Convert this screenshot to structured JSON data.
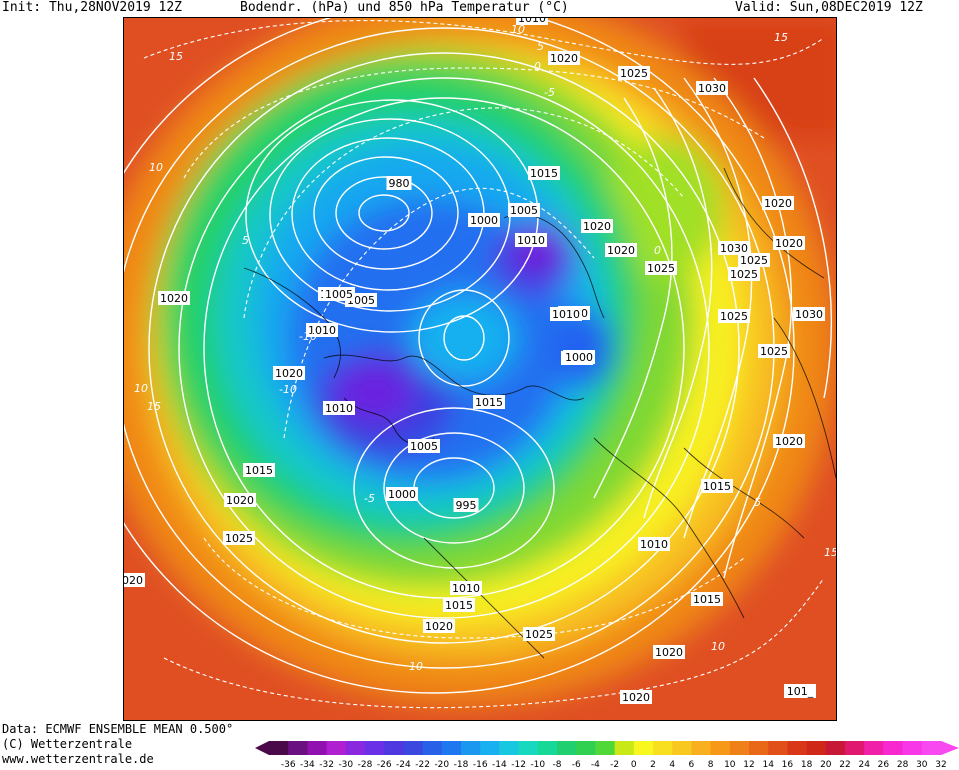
{
  "header": {
    "init": "Init: Thu,28NOV2019 12Z",
    "title": "Bodendr. (hPa) und 850 hPa Temperatur (°C)",
    "valid": "Valid: Sun,08DEC2019 12Z"
  },
  "footer": {
    "data_source": "Data: ECMWF ENSEMBLE MEAN 0.500°",
    "copyright": "(C) Wetterzentrale",
    "website": "www.wetterzentrale.de"
  },
  "legend": {
    "ticks": [
      "-36",
      "-34",
      "-32",
      "-30",
      "-28",
      "-26",
      "-24",
      "-22",
      "-20",
      "-18",
      "-16",
      "-14",
      "-12",
      "-10",
      "-8",
      "-6",
      "-4",
      "-2",
      "0",
      "2",
      "4",
      "6",
      "8",
      "10",
      "12",
      "14",
      "16",
      "18",
      "20",
      "22",
      "24",
      "26",
      "28",
      "30",
      "32"
    ],
    "colors": [
      "#4a0a4a",
      "#6a1080",
      "#9010b0",
      "#b020d0",
      "#8a28e0",
      "#6a30e8",
      "#5038e0",
      "#3a48e0",
      "#2860e8",
      "#2078f0",
      "#1a98f0",
      "#18b0f0",
      "#18c8e0",
      "#18d8c0",
      "#18d898",
      "#20d070",
      "#30d050",
      "#50d838",
      "#c8e818",
      "#f8f820",
      "#f8e020",
      "#f8c820",
      "#f8b020",
      "#f89818",
      "#f08018",
      "#e86818",
      "#e05018",
      "#d83818",
      "#d02818",
      "#c81838",
      "#e01870",
      "#f020a8",
      "#f828d0",
      "#f838e8",
      "#f848f0"
    ]
  },
  "map": {
    "pressure_labels": [
      "1020",
      "1025",
      "1030",
      "980",
      "1015",
      "1005",
      "1000",
      "1010",
      "1020",
      "1020",
      "1025",
      "1030",
      "1025",
      "1025",
      "1020",
      "1000",
      "1005",
      "1010",
      "1010",
      "1000",
      "1010",
      "1015",
      "1010",
      "1005",
      "1000",
      "995",
      "1010",
      "1015",
      "1015",
      "1020",
      "1010",
      "1015",
      "1020",
      "1025",
      "1020",
      "1020",
      "1015",
      "1020",
      "1025",
      "1020",
      "101_",
      "1030",
      "1025",
      "1020",
      "1020",
      "1025",
      "1020",
      "1010",
      "1005",
      "1000"
    ],
    "temperature_labels": [
      "15",
      "10",
      "5",
      "0",
      "-5",
      "-10",
      "15",
      "10",
      "5",
      "0",
      "-10",
      "-5",
      "15",
      "10",
      "10",
      "5",
      "15",
      "10"
    ]
  }
}
